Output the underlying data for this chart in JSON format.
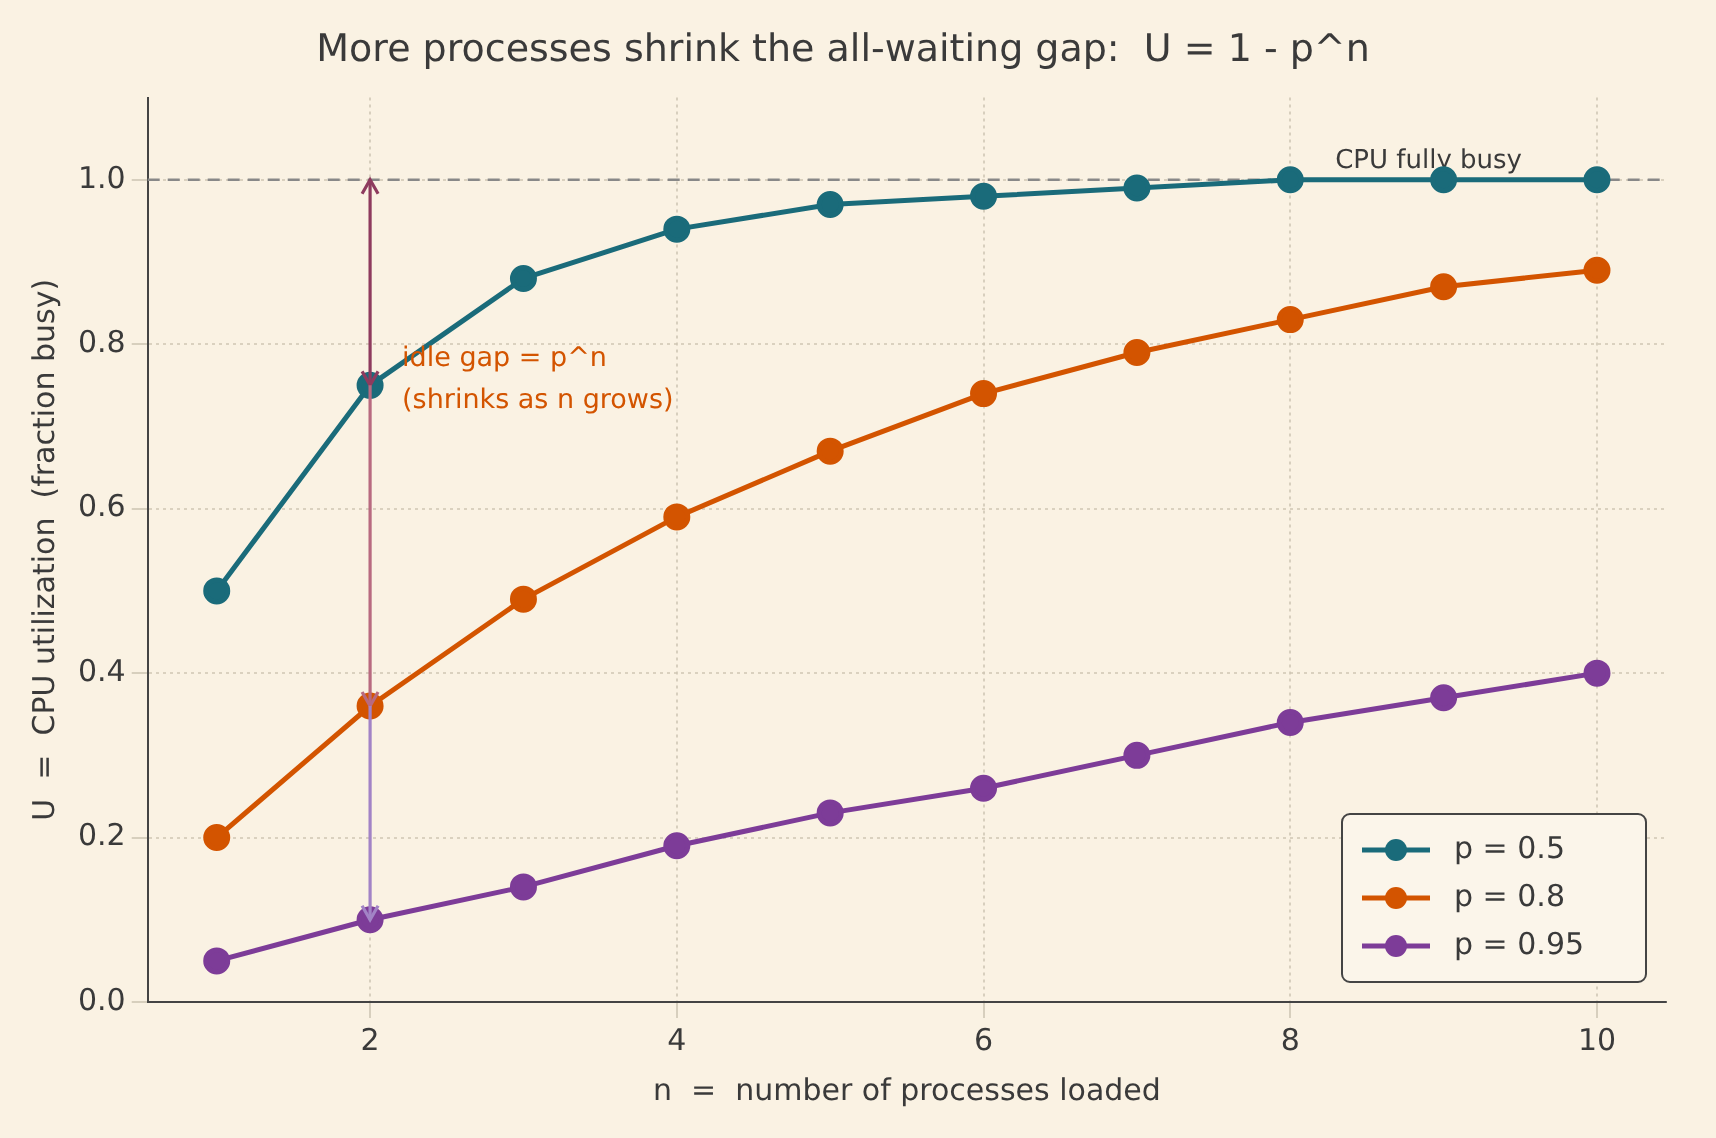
{
  "chart_data": {
    "type": "line",
    "title": "More processes shrink the all-waiting gap:  U = 1 - p^n",
    "xlabel": "n  =  number of processes loaded",
    "ylabel": "U  =  CPU utilization  (fraction busy)",
    "x": [
      1,
      2,
      3,
      4,
      5,
      6,
      7,
      8,
      9,
      10
    ],
    "series": [
      {
        "name": "p = 0.5",
        "color": "#1a6b7a",
        "values": [
          0.5,
          0.75,
          0.88,
          0.94,
          0.97,
          0.98,
          0.99,
          1.0,
          1.0,
          1.0
        ]
      },
      {
        "name": "p = 0.8",
        "color": "#d35400",
        "values": [
          0.2,
          0.36,
          0.49,
          0.59,
          0.67,
          0.74,
          0.79,
          0.83,
          0.87,
          0.89
        ]
      },
      {
        "name": "p = 0.95",
        "color": "#7d3c98",
        "values": [
          0.05,
          0.1,
          0.14,
          0.19,
          0.23,
          0.26,
          0.3,
          0.34,
          0.37,
          0.4
        ]
      }
    ],
    "xlim": [
      0.55,
      10.45
    ],
    "xticks": [
      2,
      4,
      6,
      8,
      10
    ],
    "ylim": [
      0,
      1.1
    ],
    "yticks": [
      {
        "value": 0,
        "label": "0.0"
      },
      {
        "value": 0.2,
        "label": "0.2"
      },
      {
        "value": 0.4,
        "label": "0.4"
      },
      {
        "value": 0.6,
        "label": "0.6"
      },
      {
        "value": 0.8,
        "label": "0.8"
      },
      {
        "value": 1.0,
        "label": "1.0"
      }
    ],
    "ref_lines": [
      {
        "axis": "y",
        "value": 1.0,
        "label": "CPU fully busy",
        "color": "#888888",
        "line_style": "dashed"
      }
    ],
    "annotations": [
      {
        "text": "idle gap = p^n\n(shrinks as n grows)",
        "x": 2,
        "y": 0.75
      }
    ],
    "grid": true,
    "legend": "bottom right",
    "marker": "circle",
    "line_style": "solid"
  }
}
